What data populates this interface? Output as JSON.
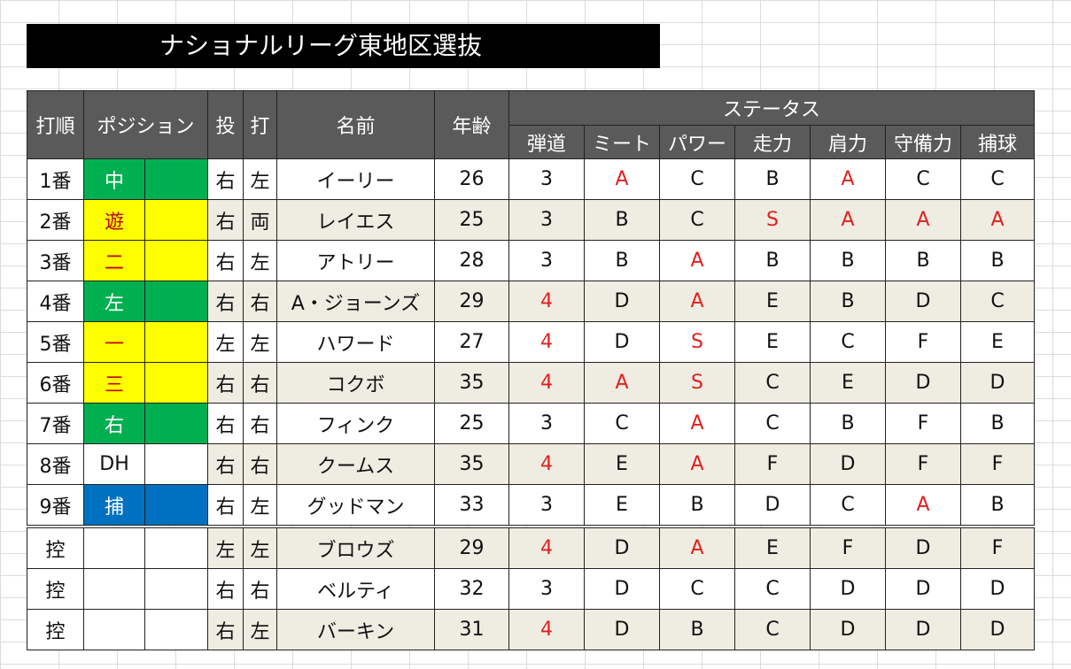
{
  "title": "ナショナルリーグ東地区選抜",
  "headers": {
    "order": "打順",
    "position": "ポジション",
    "throws": "投",
    "bats": "打",
    "name": "名前",
    "age": "年齢",
    "status": "ステータス",
    "stats": [
      "弾道",
      "ミート",
      "パワー",
      "走力",
      "肩力",
      "守備力",
      "捕球"
    ]
  },
  "colors": {
    "green": "#00b050",
    "yellow": "#ffff00",
    "blue": "#0070c0",
    "red": "#e0201e",
    "header_dark": "#4a4530",
    "header_gray": "#5a5a5a"
  },
  "players": [
    {
      "order": "1番",
      "pos": "中",
      "pos_color": "green",
      "throws": "右",
      "bats": "左",
      "name": "イーリー",
      "age": "26",
      "stats": [
        "3",
        "A",
        "C",
        "B",
        "A",
        "C",
        "C"
      ],
      "red": [
        false,
        true,
        false,
        false,
        true,
        false,
        false
      ]
    },
    {
      "order": "2番",
      "pos": "遊",
      "pos_color": "yellow",
      "throws": "右",
      "bats": "両",
      "name": "レイエス",
      "age": "25",
      "stats": [
        "3",
        "B",
        "C",
        "S",
        "A",
        "A",
        "A"
      ],
      "red": [
        false,
        false,
        false,
        true,
        true,
        true,
        true
      ]
    },
    {
      "order": "3番",
      "pos": "二",
      "pos_color": "yellow",
      "throws": "右",
      "bats": "左",
      "name": "アトリー",
      "age": "28",
      "stats": [
        "3",
        "B",
        "A",
        "B",
        "B",
        "B",
        "B"
      ],
      "red": [
        false,
        false,
        true,
        false,
        false,
        false,
        false
      ]
    },
    {
      "order": "4番",
      "pos": "左",
      "pos_color": "green",
      "throws": "右",
      "bats": "右",
      "name": "A・ジョーンズ",
      "age": "29",
      "stats": [
        "4",
        "D",
        "A",
        "E",
        "B",
        "D",
        "C"
      ],
      "red": [
        true,
        false,
        true,
        false,
        false,
        false,
        false
      ]
    },
    {
      "order": "5番",
      "pos": "一",
      "pos_color": "yellow",
      "throws": "左",
      "bats": "左",
      "name": "ハワード",
      "age": "27",
      "stats": [
        "4",
        "D",
        "S",
        "E",
        "C",
        "F",
        "E"
      ],
      "red": [
        true,
        false,
        true,
        false,
        false,
        false,
        false
      ]
    },
    {
      "order": "6番",
      "pos": "三",
      "pos_color": "yellow",
      "throws": "右",
      "bats": "右",
      "name": "コクボ",
      "age": "35",
      "stats": [
        "4",
        "A",
        "S",
        "C",
        "E",
        "D",
        "D"
      ],
      "red": [
        true,
        true,
        true,
        false,
        false,
        false,
        false
      ]
    },
    {
      "order": "7番",
      "pos": "右",
      "pos_color": "green",
      "throws": "右",
      "bats": "右",
      "name": "フィンク",
      "age": "25",
      "stats": [
        "3",
        "C",
        "A",
        "C",
        "B",
        "F",
        "B"
      ],
      "red": [
        false,
        false,
        true,
        false,
        false,
        false,
        false
      ]
    },
    {
      "order": "8番",
      "pos": "DH",
      "pos_color": "white",
      "throws": "右",
      "bats": "右",
      "name": "クームス",
      "age": "35",
      "stats": [
        "4",
        "E",
        "A",
        "F",
        "D",
        "F",
        "F"
      ],
      "red": [
        true,
        false,
        true,
        false,
        false,
        false,
        false
      ]
    },
    {
      "order": "9番",
      "pos": "捕",
      "pos_color": "blue",
      "throws": "右",
      "bats": "左",
      "name": "グッドマン",
      "age": "33",
      "stats": [
        "3",
        "E",
        "B",
        "D",
        "C",
        "A",
        "B"
      ],
      "red": [
        false,
        false,
        false,
        false,
        false,
        true,
        false
      ]
    },
    {
      "order": "控",
      "pos": "",
      "pos_color": "white",
      "throws": "左",
      "bats": "左",
      "name": "ブロウズ",
      "age": "29",
      "stats": [
        "4",
        "D",
        "A",
        "E",
        "F",
        "D",
        "F"
      ],
      "red": [
        true,
        false,
        true,
        false,
        false,
        false,
        false
      ]
    },
    {
      "order": "控",
      "pos": "",
      "pos_color": "white",
      "throws": "右",
      "bats": "右",
      "name": "ベルティ",
      "age": "32",
      "stats": [
        "3",
        "D",
        "C",
        "C",
        "D",
        "D",
        "D"
      ],
      "red": [
        false,
        false,
        false,
        false,
        false,
        false,
        false
      ]
    },
    {
      "order": "控",
      "pos": "",
      "pos_color": "white",
      "throws": "右",
      "bats": "左",
      "name": "バーキン",
      "age": "31",
      "stats": [
        "4",
        "D",
        "B",
        "C",
        "D",
        "D",
        "D"
      ],
      "red": [
        true,
        false,
        false,
        false,
        false,
        false,
        false
      ]
    }
  ]
}
